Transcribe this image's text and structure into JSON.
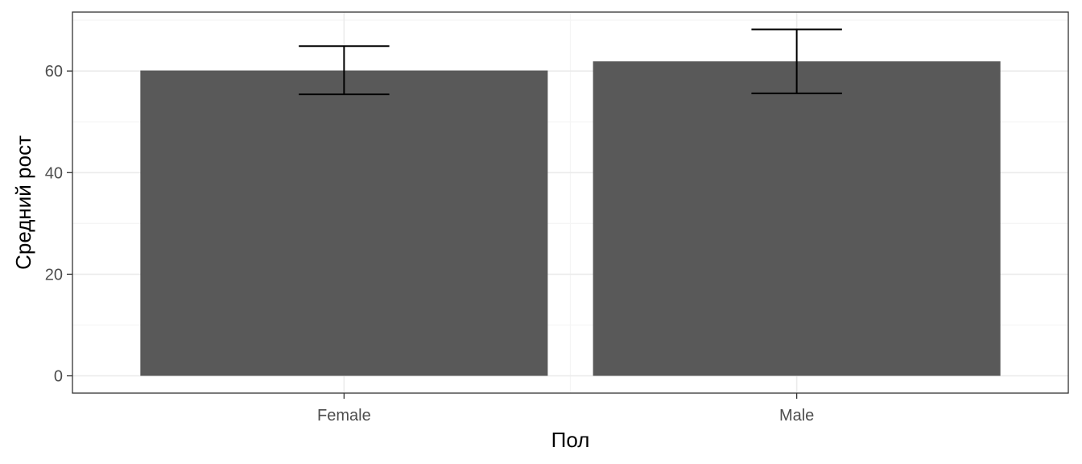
{
  "chart_data": {
    "type": "bar",
    "title": "",
    "xlabel": "Пол",
    "ylabel": "Средний рост",
    "categories": [
      "Female",
      "Male"
    ],
    "values": [
      60.1,
      61.9
    ],
    "error_bars": [
      {
        "low": 55.4,
        "high": 64.9
      },
      {
        "low": 55.6,
        "high": 68.2
      }
    ],
    "ylim": [
      -3.4,
      71.6
    ],
    "y_ticks": [
      0,
      20,
      40,
      60
    ],
    "y_tick_labels": [
      "0",
      "20",
      "40",
      "60"
    ],
    "grid": true,
    "legend": "none",
    "colors": {
      "bar": "#595959",
      "error_bar": "#000000",
      "grid_major": "#ebebeb",
      "grid_minor": "#f5f5f5",
      "panel_border": "#333333",
      "tick_label": "#4d4d4d"
    }
  }
}
